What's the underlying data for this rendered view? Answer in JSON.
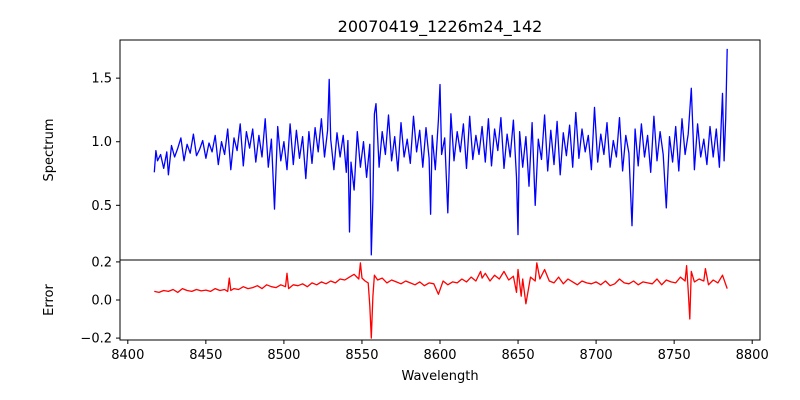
{
  "chart_data": [
    {
      "type": "line",
      "panel": "top",
      "title": "20070419_1226m24_142",
      "xlabel": "",
      "ylabel": "Spectrum",
      "xlim": [
        8395,
        8805
      ],
      "ylim": [
        0.07,
        1.8
      ],
      "yticks": [
        0.5,
        1.0,
        1.5
      ],
      "ytick_labels": [
        "0.5",
        "1.0",
        "1.5"
      ],
      "grid": false,
      "series": [
        {
          "color": "#0000ff",
          "x": [
            8417,
            8418,
            8419,
            8421,
            8423,
            8425,
            8426,
            8428,
            8430,
            8432,
            8434,
            8436,
            8438,
            8440,
            8442,
            8444,
            8446,
            8448,
            8450,
            8452,
            8454,
            8456,
            8458,
            8460,
            8462,
            8464,
            8466,
            8468,
            8470,
            8472,
            8474,
            8476,
            8478,
            8480,
            8482,
            8484,
            8486,
            8488,
            8490,
            8492,
            8494,
            8496,
            8498,
            8500,
            8502,
            8504,
            8506,
            8508,
            8510,
            8512,
            8514,
            8516,
            8518,
            8520,
            8522,
            8524,
            8526,
            8528,
            8529,
            8530,
            8532,
            8534,
            8536,
            8538,
            8540,
            8541,
            8542,
            8543,
            8545,
            8547,
            8549,
            8551,
            8553,
            8555,
            8556,
            8557,
            8558,
            8559,
            8561,
            8563,
            8565,
            8567,
            8569,
            8571,
            8573,
            8575,
            8577,
            8579,
            8581,
            8583,
            8585,
            8587,
            8589,
            8591,
            8593,
            8594,
            8595,
            8597,
            8599,
            8600,
            8601,
            8603,
            8605,
            8607,
            8609,
            8611,
            8613,
            8615,
            8617,
            8619,
            8621,
            8623,
            8625,
            8627,
            8629,
            8631,
            8633,
            8635,
            8637,
            8639,
            8641,
            8643,
            8645,
            8647,
            8649,
            8650,
            8651,
            8653,
            8655,
            8657,
            8659,
            8661,
            8663,
            8665,
            8667,
            8669,
            8671,
            8673,
            8675,
            8677,
            8679,
            8681,
            8683,
            8685,
            8687,
            8689,
            8691,
            8693,
            8695,
            8697,
            8699,
            8701,
            8703,
            8705,
            8707,
            8709,
            8711,
            8713,
            8715,
            8717,
            8719,
            8721,
            8723,
            8725,
            8727,
            8729,
            8731,
            8733,
            8735,
            8737,
            8739,
            8741,
            8743,
            8745,
            8747,
            8749,
            8751,
            8753,
            8755,
            8757,
            8759,
            8761,
            8763,
            8765,
            8767,
            8769,
            8771,
            8773,
            8775,
            8777,
            8779,
            8781,
            8782,
            8783,
            8784
          ],
          "y": [
            0.76,
            0.93,
            0.85,
            0.9,
            0.79,
            0.92,
            0.74,
            0.97,
            0.88,
            0.95,
            1.03,
            0.85,
            0.98,
            0.91,
            1.06,
            0.89,
            0.94,
            1.01,
            0.87,
            0.99,
            0.92,
            1.05,
            0.82,
            1.0,
            0.9,
            1.1,
            0.78,
            1.03,
            0.93,
            1.14,
            0.81,
            1.08,
            0.95,
            1.1,
            0.84,
            1.05,
            0.88,
            1.18,
            0.8,
            1.02,
            0.47,
            1.12,
            0.85,
            1.0,
            0.78,
            1.14,
            0.82,
            1.09,
            0.87,
            1.04,
            0.71,
            1.08,
            0.83,
            1.11,
            0.92,
            1.18,
            0.88,
            1.09,
            1.49,
            1.02,
            0.78,
            1.07,
            0.88,
            1.05,
            0.76,
            1.01,
            0.29,
            0.84,
            0.62,
            1.08,
            0.8,
            1.0,
            0.72,
            0.98,
            0.11,
            0.55,
            1.22,
            1.3,
            0.8,
            1.08,
            0.9,
            1.21,
            0.85,
            1.04,
            0.77,
            1.15,
            0.88,
            1.02,
            0.83,
            1.2,
            0.92,
            1.09,
            0.8,
            1.11,
            0.87,
            0.43,
            1.05,
            0.78,
            1.17,
            1.45,
            0.9,
            1.03,
            0.44,
            1.22,
            0.85,
            1.08,
            0.92,
            1.14,
            0.79,
            1.2,
            0.86,
            1.05,
            0.9,
            1.12,
            0.84,
            1.18,
            0.81,
            1.1,
            0.93,
            1.19,
            0.79,
            1.06,
            0.88,
            1.17,
            0.72,
            0.27,
            1.08,
            0.8,
            1.04,
            0.65,
            1.15,
            0.5,
            1.02,
            0.86,
            1.21,
            0.77,
            1.09,
            0.82,
            1.16,
            0.74,
            1.07,
            0.89,
            1.13,
            0.8,
            1.23,
            0.87,
            1.1,
            0.92,
            1.05,
            0.78,
            1.27,
            0.84,
            1.06,
            0.9,
            1.15,
            0.8,
            1.01,
            0.88,
            1.19,
            0.77,
            1.05,
            0.91,
            0.34,
            1.1,
            0.81,
            1.14,
            0.88,
            1.05,
            0.76,
            1.2,
            0.85,
            1.08,
            0.9,
            0.48,
            1.04,
            0.84,
            1.12,
            0.77,
            1.18,
            0.9,
            1.06,
            1.42,
            0.78,
            1.14,
            0.88,
            1.02,
            0.82,
            1.12,
            0.88,
            1.1,
            0.8,
            1.38,
            0.85,
            1.18,
            1.73
          ]
        }
      ]
    },
    {
      "type": "line",
      "panel": "bottom",
      "title": "",
      "xlabel": "Wavelength",
      "ylabel": "Error",
      "xlim": [
        8395,
        8805
      ],
      "ylim": [
        -0.21,
        0.21
      ],
      "xticks": [
        8400,
        8450,
        8500,
        8550,
        8600,
        8650,
        8700,
        8750,
        8800
      ],
      "xtick_labels": [
        "8400",
        "8450",
        "8500",
        "8550",
        "8600",
        "8650",
        "8700",
        "8750",
        "8800"
      ],
      "yticks": [
        -0.2,
        0.0,
        0.2
      ],
      "ytick_labels": [
        "−0.2",
        "0.0",
        "0.2"
      ],
      "grid": false,
      "series": [
        {
          "color": "#ff0000",
          "x": [
            8417,
            8420,
            8423,
            8426,
            8429,
            8432,
            8435,
            8438,
            8441,
            8444,
            8447,
            8450,
            8453,
            8456,
            8459,
            8462,
            8464,
            8465,
            8466,
            8468,
            8471,
            8474,
            8477,
            8480,
            8483,
            8486,
            8489,
            8492,
            8495,
            8498,
            8501,
            8502,
            8503,
            8506,
            8509,
            8512,
            8515,
            8518,
            8521,
            8524,
            8527,
            8530,
            8533,
            8536,
            8539,
            8542,
            8545,
            8548,
            8549,
            8550,
            8552,
            8554,
            8555,
            8556,
            8557,
            8558,
            8560,
            8563,
            8566,
            8569,
            8572,
            8575,
            8578,
            8581,
            8584,
            8587,
            8590,
            8593,
            8596,
            8599,
            8602,
            8605,
            8608,
            8611,
            8614,
            8617,
            8620,
            8623,
            8626,
            8627,
            8629,
            8632,
            8635,
            8638,
            8641,
            8644,
            8647,
            8649,
            8650,
            8652,
            8653,
            8655,
            8658,
            8661,
            8662,
            8664,
            8667,
            8670,
            8673,
            8676,
            8679,
            8682,
            8685,
            8688,
            8691,
            8694,
            8697,
            8700,
            8703,
            8706,
            8709,
            8712,
            8715,
            8718,
            8721,
            8724,
            8727,
            8730,
            8733,
            8736,
            8739,
            8742,
            8745,
            8748,
            8751,
            8754,
            8757,
            8758,
            8759,
            8760,
            8761,
            8763,
            8766,
            8769,
            8770,
            8772,
            8775,
            8778,
            8781,
            8784
          ],
          "y": [
            0.045,
            0.04,
            0.05,
            0.045,
            0.055,
            0.04,
            0.06,
            0.05,
            0.045,
            0.055,
            0.048,
            0.052,
            0.045,
            0.06,
            0.05,
            0.055,
            0.045,
            0.115,
            0.05,
            0.06,
            0.055,
            0.07,
            0.06,
            0.065,
            0.075,
            0.06,
            0.08,
            0.07,
            0.065,
            0.08,
            0.07,
            0.14,
            0.06,
            0.08,
            0.075,
            0.085,
            0.07,
            0.09,
            0.08,
            0.095,
            0.085,
            0.1,
            0.09,
            0.11,
            0.105,
            0.12,
            0.135,
            0.11,
            0.195,
            0.115,
            0.1,
            0.09,
            -0.03,
            -0.2,
            0.02,
            0.13,
            0.105,
            0.115,
            0.09,
            0.105,
            0.095,
            0.085,
            0.1,
            0.09,
            0.08,
            0.095,
            0.075,
            0.09,
            0.085,
            0.03,
            0.1,
            0.08,
            0.095,
            0.09,
            0.11,
            0.095,
            0.12,
            0.1,
            0.15,
            0.115,
            0.14,
            0.1,
            0.13,
            0.11,
            0.15,
            0.105,
            0.125,
            0.04,
            0.16,
            0.02,
            0.11,
            -0.02,
            0.12,
            0.1,
            0.195,
            0.11,
            0.16,
            0.1,
            0.09,
            0.12,
            0.085,
            0.11,
            0.095,
            0.08,
            0.1,
            0.09,
            0.085,
            0.095,
            0.08,
            0.1,
            0.075,
            0.085,
            0.11,
            0.09,
            0.085,
            0.1,
            0.08,
            0.095,
            0.09,
            0.085,
            0.11,
            0.08,
            0.105,
            0.095,
            0.09,
            0.12,
            0.1,
            0.18,
            0.05,
            -0.1,
            0.15,
            0.095,
            0.11,
            0.1,
            0.165,
            0.08,
            0.105,
            0.09,
            0.13,
            0.06
          ]
        }
      ]
    }
  ]
}
